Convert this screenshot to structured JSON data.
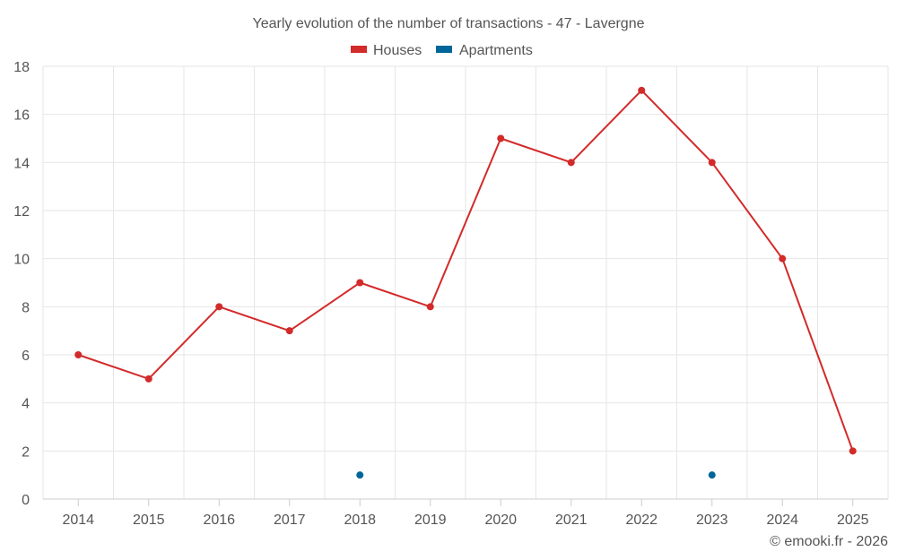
{
  "chart_data": {
    "type": "line",
    "title": "Yearly evolution of the number of transactions - 47 - Lavergne",
    "categories": [
      "2014",
      "2015",
      "2016",
      "2017",
      "2018",
      "2019",
      "2020",
      "2021",
      "2022",
      "2023",
      "2024",
      "2025"
    ],
    "series": [
      {
        "name": "Houses",
        "color": "#d32a2a",
        "values": [
          6,
          5,
          8,
          7,
          9,
          8,
          15,
          14,
          17,
          14,
          10,
          2
        ]
      },
      {
        "name": "Apartments",
        "color": "#006699",
        "values": [
          null,
          null,
          null,
          null,
          1,
          null,
          null,
          null,
          null,
          1,
          null,
          null
        ]
      }
    ],
    "ylim": [
      0,
      18
    ],
    "yticks": [
      "0",
      "2",
      "4",
      "6",
      "8",
      "10",
      "12",
      "14",
      "16",
      "18"
    ],
    "xlabel": "",
    "ylabel": "",
    "grid": true,
    "legend": "top-center"
  },
  "credit": "© emooki.fr - 2026"
}
